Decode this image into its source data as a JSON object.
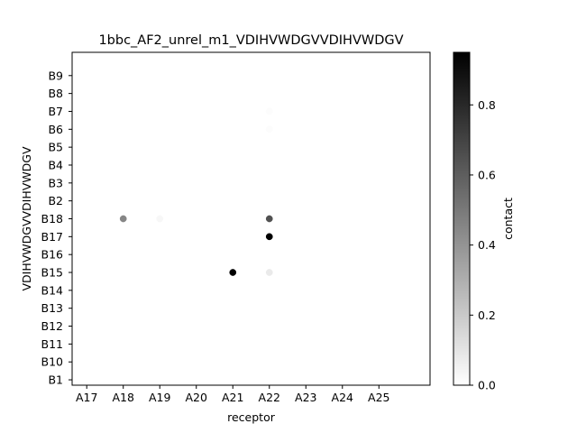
{
  "chart_data": {
    "type": "scatter",
    "title": "1bbc_AF2_unrel_m1_VDIHVWDGVVDIHVWDGV",
    "xlabel": "receptor",
    "ylabel": "VDIHVWDGVVDIHVWDGV",
    "x_categories": [
      "A17",
      "A18",
      "A19",
      "A20",
      "A21",
      "A22",
      "A23",
      "A24",
      "A25"
    ],
    "y_categories": [
      "B1",
      "B10",
      "B11",
      "B12",
      "B13",
      "B14",
      "B15",
      "B16",
      "B17",
      "B18",
      "B2",
      "B3",
      "B4",
      "B5",
      "B6",
      "B7",
      "B8",
      "B9"
    ],
    "points": [
      {
        "x": "A18",
        "y": "B18",
        "value": 0.45
      },
      {
        "x": "A19",
        "y": "B18",
        "value": 0.03
      },
      {
        "x": "A21",
        "y": "B15",
        "value": 0.95
      },
      {
        "x": "A22",
        "y": "B18",
        "value": 0.65
      },
      {
        "x": "A22",
        "y": "B17",
        "value": 0.95
      },
      {
        "x": "A22",
        "y": "B15",
        "value": 0.08
      },
      {
        "x": "A22",
        "y": "B6",
        "value": 0.01
      },
      {
        "x": "A22",
        "y": "B7",
        "value": 0.01
      }
    ],
    "colorbar": {
      "label": "contact",
      "min": 0.0,
      "max": 0.95,
      "ticks": [
        "0.0",
        "0.2",
        "0.4",
        "0.6",
        "0.8"
      ],
      "colormap": "Greys",
      "color_low": "#ffffff",
      "color_high": "#000000"
    }
  }
}
